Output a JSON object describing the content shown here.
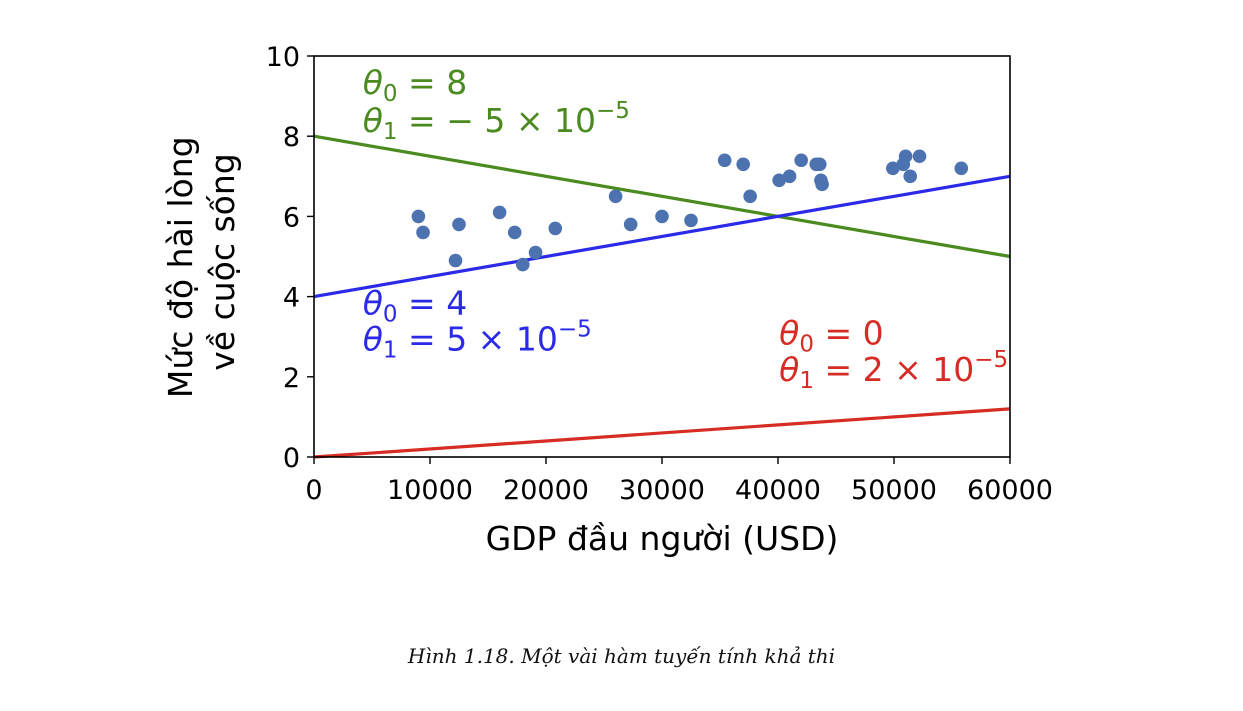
{
  "chart_data": {
    "type": "scatter",
    "xlabel": "GDP đầu người (USD)",
    "ylabel_lines": [
      "Mức độ hài lòng",
      "về cuộc sống"
    ],
    "xlim": [
      0,
      60000
    ],
    "ylim": [
      0,
      10
    ],
    "x_ticks": [
      "0",
      "10000",
      "20000",
      "30000",
      "40000",
      "50000",
      "60000"
    ],
    "y_ticks": [
      "0",
      "2",
      "4",
      "6",
      "8",
      "10"
    ],
    "grid": false,
    "points": [
      [
        9000,
        6.0
      ],
      [
        9400,
        5.6
      ],
      [
        12200,
        4.9
      ],
      [
        12500,
        5.8
      ],
      [
        16000,
        6.1
      ],
      [
        17300,
        5.6
      ],
      [
        18000,
        4.8
      ],
      [
        19100,
        5.1
      ],
      [
        20800,
        5.7
      ],
      [
        26000,
        6.5
      ],
      [
        27300,
        5.8
      ],
      [
        30000,
        6.0
      ],
      [
        32500,
        5.9
      ],
      [
        35400,
        7.4
      ],
      [
        37000,
        7.3
      ],
      [
        37600,
        6.5
      ],
      [
        40100,
        6.9
      ],
      [
        41000,
        7.0
      ],
      [
        42000,
        7.4
      ],
      [
        43300,
        7.3
      ],
      [
        43600,
        7.3
      ],
      [
        43700,
        6.9
      ],
      [
        43800,
        6.8
      ],
      [
        49900,
        7.2
      ],
      [
        50800,
        7.3
      ],
      [
        51000,
        7.5
      ],
      [
        51400,
        7.0
      ],
      [
        52200,
        7.5
      ],
      [
        55800,
        7.2
      ]
    ],
    "point_color": "#4c72b0",
    "lines": [
      {
        "theta0": 8,
        "theta1": -5e-05,
        "color": "#4a8a1f",
        "label_line1": {
          "prefix": "θ",
          "sub": "0",
          "rest": " = 8"
        },
        "label_line2": {
          "prefix": "θ",
          "sub": "1",
          "rest": " = − 5 × 10",
          "sup": "−5"
        }
      },
      {
        "theta0": 4,
        "theta1": 5e-05,
        "color": "#2a2ae8",
        "label_line1": {
          "prefix": "θ",
          "sub": "0",
          "rest": " = 4"
        },
        "label_line2": {
          "prefix": "θ",
          "sub": "1",
          "rest": " = 5 × 10",
          "sup": "−5"
        }
      },
      {
        "theta0": 0,
        "theta1": 2e-05,
        "color": "#d62c24",
        "label_line1": {
          "prefix": "θ",
          "sub": "0",
          "rest": " = 0"
        },
        "label_line2": {
          "prefix": "θ",
          "sub": "1",
          "rest": " = 2 × 10",
          "sup": "−5"
        }
      }
    ]
  },
  "caption": "Hình 1.18. Một vài hàm tuyến tính khả thi"
}
